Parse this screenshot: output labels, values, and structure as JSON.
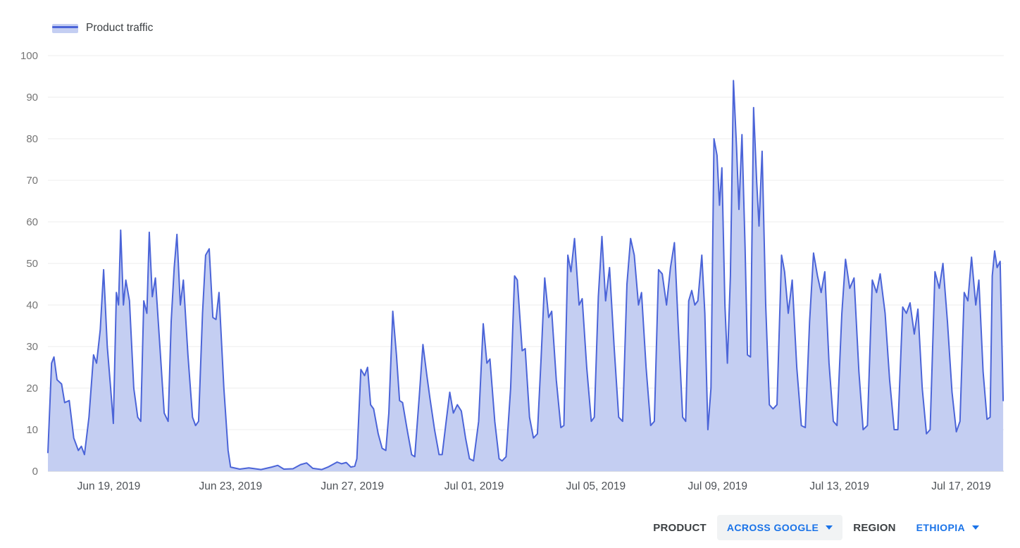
{
  "legend": {
    "label": "Product traffic"
  },
  "controls": {
    "product_label": "PRODUCT",
    "product_value": "ACROSS GOOGLE",
    "region_label": "REGION",
    "region_value": "ETHIOPIA"
  },
  "colors": {
    "line": "#4b64d8",
    "fill": "#c4cef2",
    "grid": "#ececec",
    "baseline": "#c9cacc",
    "y_text": "#757575",
    "x_text": "#4d5156",
    "accent_blue": "#1a73e8"
  },
  "chart_data": {
    "type": "area",
    "title": "Product traffic",
    "series_name": "Product traffic",
    "xlabel": "",
    "ylabel": "",
    "ylim": [
      0,
      100
    ],
    "grid": "horizontal",
    "legend_position": "top-left",
    "y_ticks": [
      0,
      10,
      20,
      30,
      40,
      50,
      60,
      70,
      80,
      90,
      100
    ],
    "x_domain_days": [
      0,
      31.4
    ],
    "x_ticks": [
      {
        "x": 2,
        "label": "Jun 19, 2019"
      },
      {
        "x": 6,
        "label": "Jun 23, 2019"
      },
      {
        "x": 10,
        "label": "Jun 27, 2019"
      },
      {
        "x": 14,
        "label": "Jul 01, 2019"
      },
      {
        "x": 18,
        "label": "Jul 05, 2019"
      },
      {
        "x": 22,
        "label": "Jul 09, 2019"
      },
      {
        "x": 26,
        "label": "Jul 13, 2019"
      },
      {
        "x": 30,
        "label": "Jul 17, 2019"
      }
    ],
    "points": [
      [
        0,
        4.5
      ],
      [
        0.12,
        26
      ],
      [
        0.2,
        27.5
      ],
      [
        0.3,
        22
      ],
      [
        0.45,
        21
      ],
      [
        0.55,
        16.5
      ],
      [
        0.7,
        17
      ],
      [
        0.85,
        8
      ],
      [
        1,
        5
      ],
      [
        1.1,
        6
      ],
      [
        1.2,
        4
      ],
      [
        1.35,
        13
      ],
      [
        1.5,
        28
      ],
      [
        1.6,
        26
      ],
      [
        1.72,
        34
      ],
      [
        1.83,
        48.5
      ],
      [
        1.95,
        30
      ],
      [
        2.05,
        21
      ],
      [
        2.15,
        11.5
      ],
      [
        2.25,
        43
      ],
      [
        2.32,
        40
      ],
      [
        2.39,
        58
      ],
      [
        2.48,
        40
      ],
      [
        2.56,
        46
      ],
      [
        2.68,
        41
      ],
      [
        2.82,
        20
      ],
      [
        2.95,
        13
      ],
      [
        3.05,
        12
      ],
      [
        3.15,
        41
      ],
      [
        3.25,
        38
      ],
      [
        3.33,
        57.5
      ],
      [
        3.43,
        42
      ],
      [
        3.53,
        46.5
      ],
      [
        3.68,
        30
      ],
      [
        3.82,
        14
      ],
      [
        3.95,
        12
      ],
      [
        4.05,
        36
      ],
      [
        4.15,
        49
      ],
      [
        4.24,
        57
      ],
      [
        4.35,
        40
      ],
      [
        4.45,
        46
      ],
      [
        4.6,
        28
      ],
      [
        4.75,
        13
      ],
      [
        4.85,
        11
      ],
      [
        4.95,
        12
      ],
      [
        5.08,
        38
      ],
      [
        5.18,
        52
      ],
      [
        5.3,
        53.5
      ],
      [
        5.42,
        37
      ],
      [
        5.52,
        36.5
      ],
      [
        5.62,
        43
      ],
      [
        5.78,
        20
      ],
      [
        5.92,
        5
      ],
      [
        6,
        1
      ],
      [
        6.3,
        0.5
      ],
      [
        6.6,
        0.8
      ],
      [
        7,
        0.4
      ],
      [
        7.35,
        1
      ],
      [
        7.55,
        1.4
      ],
      [
        7.75,
        0.5
      ],
      [
        8.05,
        0.6
      ],
      [
        8.3,
        1.6
      ],
      [
        8.5,
        2
      ],
      [
        8.7,
        0.7
      ],
      [
        9,
        0.4
      ],
      [
        9.2,
        1
      ],
      [
        9.5,
        2.2
      ],
      [
        9.65,
        1.8
      ],
      [
        9.8,
        2.1
      ],
      [
        9.95,
        1
      ],
      [
        10.08,
        1.2
      ],
      [
        10.15,
        3
      ],
      [
        10.28,
        24.5
      ],
      [
        10.4,
        23
      ],
      [
        10.5,
        25
      ],
      [
        10.6,
        16
      ],
      [
        10.7,
        15
      ],
      [
        10.85,
        9
      ],
      [
        10.98,
        5.5
      ],
      [
        11.1,
        5
      ],
      [
        11.2,
        14
      ],
      [
        11.33,
        38.5
      ],
      [
        11.45,
        28
      ],
      [
        11.55,
        17
      ],
      [
        11.65,
        16.5
      ],
      [
        11.8,
        10
      ],
      [
        11.95,
        4
      ],
      [
        12.05,
        3.5
      ],
      [
        12.2,
        18
      ],
      [
        12.32,
        30.5
      ],
      [
        12.45,
        23
      ],
      [
        12.55,
        17.5
      ],
      [
        12.7,
        10
      ],
      [
        12.85,
        4
      ],
      [
        12.95,
        4
      ],
      [
        13.1,
        13
      ],
      [
        13.2,
        19
      ],
      [
        13.32,
        14
      ],
      [
        13.45,
        16
      ],
      [
        13.58,
        14.5
      ],
      [
        13.72,
        8
      ],
      [
        13.85,
        3
      ],
      [
        13.98,
        2.5
      ],
      [
        14.15,
        12
      ],
      [
        14.3,
        35.5
      ],
      [
        14.42,
        26
      ],
      [
        14.52,
        27
      ],
      [
        14.68,
        12
      ],
      [
        14.82,
        3
      ],
      [
        14.92,
        2.5
      ],
      [
        15.05,
        3.5
      ],
      [
        15.2,
        20
      ],
      [
        15.33,
        47
      ],
      [
        15.42,
        46
      ],
      [
        15.58,
        29
      ],
      [
        15.68,
        29.5
      ],
      [
        15.82,
        13
      ],
      [
        15.95,
        8
      ],
      [
        16.08,
        9
      ],
      [
        16.2,
        27
      ],
      [
        16.32,
        46.5
      ],
      [
        16.45,
        37
      ],
      [
        16.55,
        38.5
      ],
      [
        16.7,
        22
      ],
      [
        16.85,
        10.5
      ],
      [
        16.95,
        11
      ],
      [
        17.08,
        52
      ],
      [
        17.18,
        48
      ],
      [
        17.3,
        56
      ],
      [
        17.45,
        40
      ],
      [
        17.55,
        41.5
      ],
      [
        17.7,
        25
      ],
      [
        17.85,
        12
      ],
      [
        17.95,
        13
      ],
      [
        18.08,
        42
      ],
      [
        18.2,
        56.5
      ],
      [
        18.32,
        41
      ],
      [
        18.45,
        49
      ],
      [
        18.6,
        30
      ],
      [
        18.75,
        13
      ],
      [
        18.88,
        12
      ],
      [
        19.02,
        45
      ],
      [
        19.14,
        56
      ],
      [
        19.26,
        52
      ],
      [
        19.4,
        40
      ],
      [
        19.5,
        43
      ],
      [
        19.65,
        25
      ],
      [
        19.8,
        11
      ],
      [
        19.92,
        12
      ],
      [
        20.06,
        48.5
      ],
      [
        20.18,
        47.5
      ],
      [
        20.32,
        40
      ],
      [
        20.45,
        49
      ],
      [
        20.58,
        55
      ],
      [
        20.72,
        33
      ],
      [
        20.85,
        13
      ],
      [
        20.95,
        12
      ],
      [
        21.05,
        41
      ],
      [
        21.15,
        43.5
      ],
      [
        21.25,
        40
      ],
      [
        21.35,
        41
      ],
      [
        21.48,
        52
      ],
      [
        21.58,
        38
      ],
      [
        21.68,
        10
      ],
      [
        21.78,
        20
      ],
      [
        21.88,
        80
      ],
      [
        21.98,
        76
      ],
      [
        22.06,
        64
      ],
      [
        22.14,
        73
      ],
      [
        22.24,
        40
      ],
      [
        22.32,
        26
      ],
      [
        22.42,
        47
      ],
      [
        22.52,
        94
      ],
      [
        22.62,
        78
      ],
      [
        22.7,
        63
      ],
      [
        22.8,
        81
      ],
      [
        22.9,
        54
      ],
      [
        22.98,
        28
      ],
      [
        23.08,
        27.5
      ],
      [
        23.18,
        87.5
      ],
      [
        23.28,
        70
      ],
      [
        23.36,
        59
      ],
      [
        23.46,
        77
      ],
      [
        23.58,
        40
      ],
      [
        23.7,
        16
      ],
      [
        23.82,
        15
      ],
      [
        23.95,
        16
      ],
      [
        24.1,
        52
      ],
      [
        24.2,
        48
      ],
      [
        24.32,
        38
      ],
      [
        24.45,
        46
      ],
      [
        24.6,
        25
      ],
      [
        24.75,
        11
      ],
      [
        24.88,
        10.5
      ],
      [
        25.02,
        36
      ],
      [
        25.15,
        52.5
      ],
      [
        25.28,
        47
      ],
      [
        25.4,
        43
      ],
      [
        25.52,
        48
      ],
      [
        25.66,
        26
      ],
      [
        25.8,
        12
      ],
      [
        25.92,
        11
      ],
      [
        26.08,
        38
      ],
      [
        26.2,
        51
      ],
      [
        26.34,
        44
      ],
      [
        26.48,
        46.5
      ],
      [
        26.64,
        24
      ],
      [
        26.78,
        10
      ],
      [
        26.92,
        11
      ],
      [
        27.08,
        46
      ],
      [
        27.22,
        43
      ],
      [
        27.34,
        47.5
      ],
      [
        27.5,
        38
      ],
      [
        27.65,
        22
      ],
      [
        27.8,
        10
      ],
      [
        27.92,
        10
      ],
      [
        28.08,
        39.5
      ],
      [
        28.2,
        38
      ],
      [
        28.32,
        40.5
      ],
      [
        28.46,
        33
      ],
      [
        28.58,
        39
      ],
      [
        28.72,
        20
      ],
      [
        28.86,
        9
      ],
      [
        28.98,
        10
      ],
      [
        29.14,
        48
      ],
      [
        29.28,
        44
      ],
      [
        29.4,
        50
      ],
      [
        29.55,
        36
      ],
      [
        29.7,
        19
      ],
      [
        29.84,
        9.5
      ],
      [
        29.96,
        12
      ],
      [
        30.1,
        43
      ],
      [
        30.22,
        41
      ],
      [
        30.34,
        51.5
      ],
      [
        30.48,
        40
      ],
      [
        30.58,
        46
      ],
      [
        30.72,
        24
      ],
      [
        30.85,
        12.5
      ],
      [
        30.95,
        13
      ],
      [
        31.02,
        47
      ],
      [
        31.1,
        53
      ],
      [
        31.18,
        49
      ],
      [
        31.28,
        50.5
      ],
      [
        31.38,
        17
      ]
    ]
  }
}
